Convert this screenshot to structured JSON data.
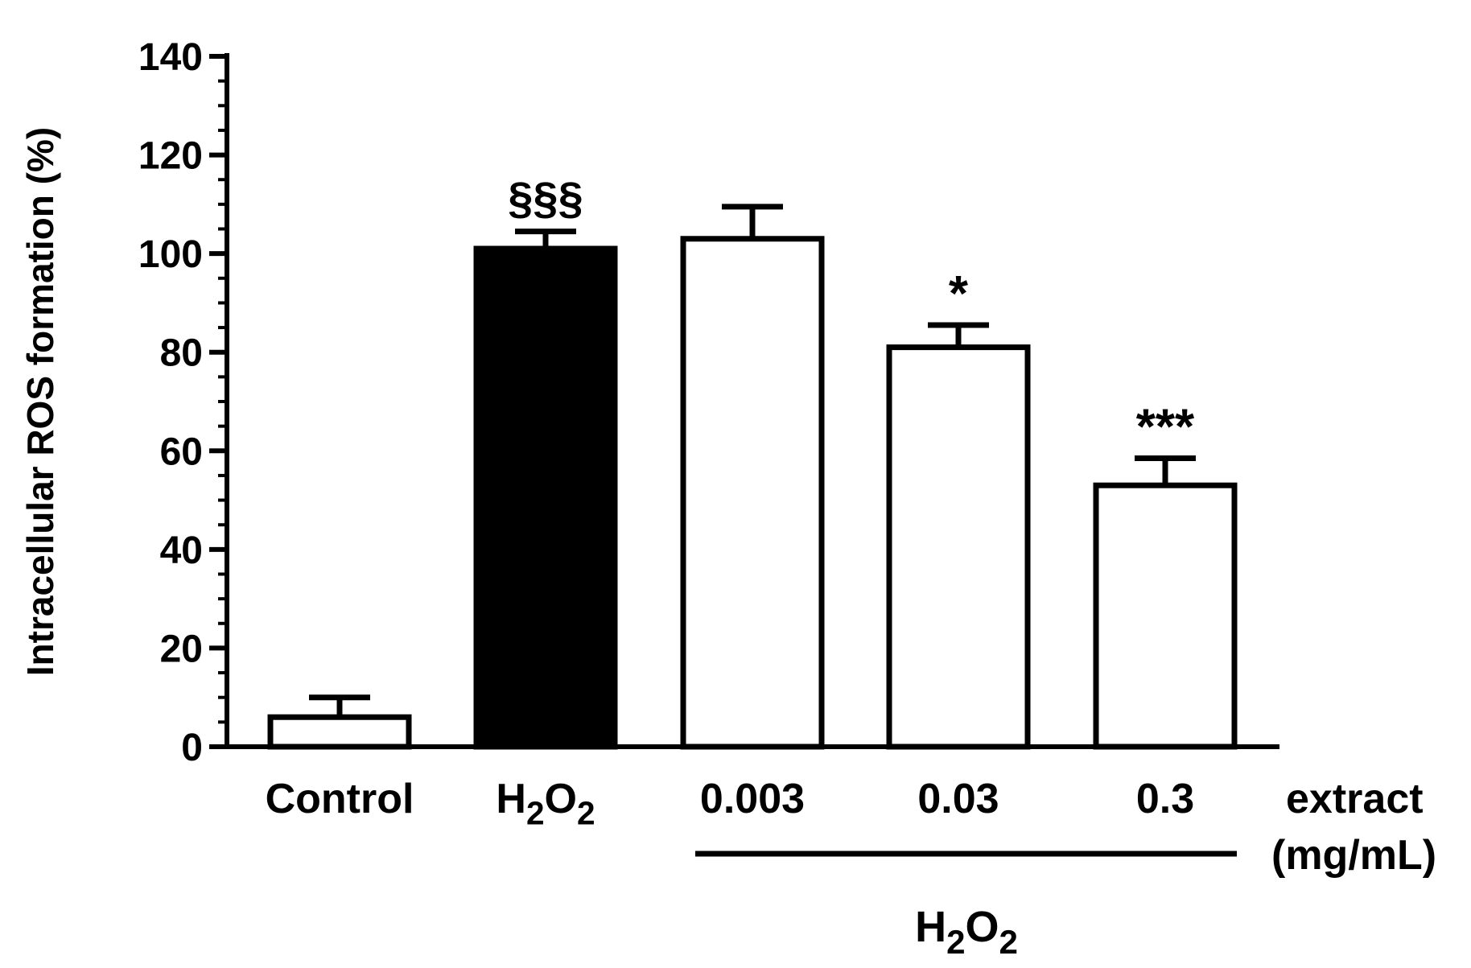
{
  "chart_data": {
    "type": "bar",
    "title": "",
    "xlabel": "",
    "ylabel": "Intracellular ROS formation (%)",
    "ylim": [
      0,
      140
    ],
    "yticks": [
      "0",
      "20",
      "40",
      "60",
      "80",
      "100",
      "120",
      "140"
    ],
    "categories": [
      "Control",
      "H2O2",
      "0.003",
      "0.03",
      "0.3"
    ],
    "values": [
      6,
      101,
      103,
      81,
      53
    ],
    "errors": [
      4,
      3.5,
      6.5,
      4.5,
      5.5
    ],
    "fills": [
      "#ffffff",
      "#000000",
      "#ffffff",
      "#ffffff",
      "#ffffff"
    ],
    "significance": [
      "",
      "§§§",
      "",
      "*",
      "***"
    ],
    "extract_label_line1": "extract",
    "extract_label_line2": "(mg/mL)",
    "group_label": "H2O2",
    "grid": false,
    "legend": "none"
  }
}
